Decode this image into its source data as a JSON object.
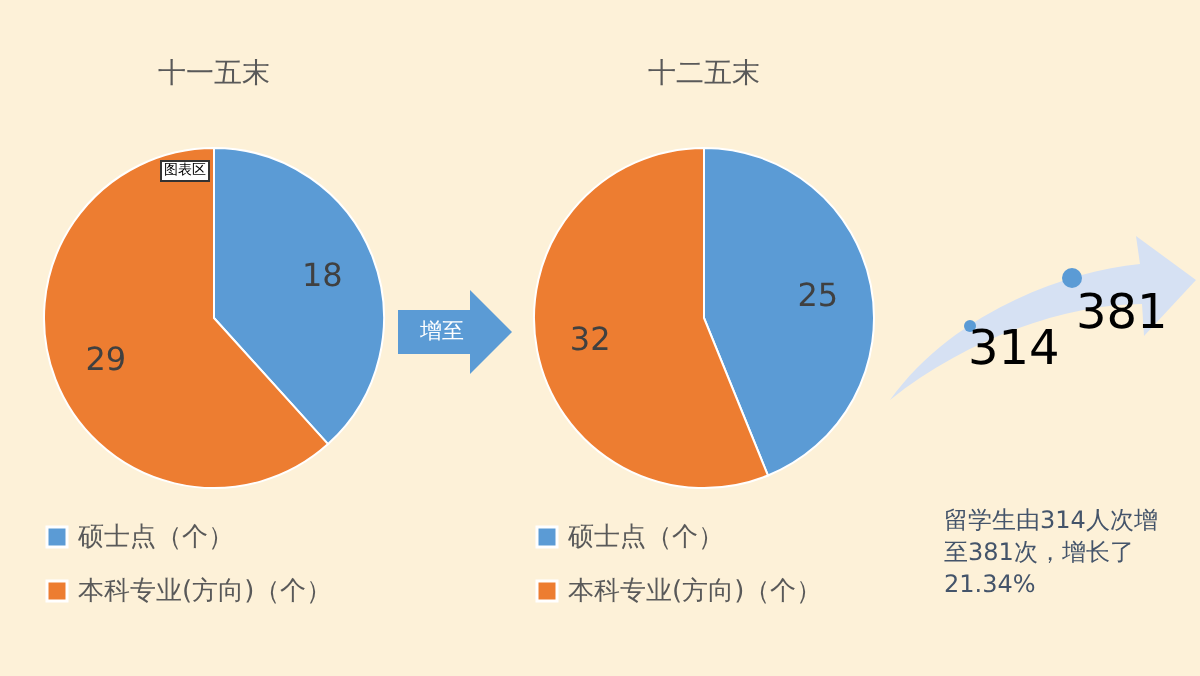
{
  "chart_data": [
    {
      "type": "pie",
      "title": "十一五末",
      "categories": [
        "硕士点（个）",
        "本科专业(方向)（个）"
      ],
      "values": [
        18,
        29
      ],
      "colors": [
        "#5b9bd5",
        "#ed7d31"
      ],
      "data_labels": true,
      "legend": "bottom",
      "annotations": [
        "图表区",
        "增至"
      ]
    },
    {
      "type": "pie",
      "title": "十二五末",
      "categories": [
        "硕士点（个）",
        "本科专业(方向)（个）"
      ],
      "values": [
        25,
        32
      ],
      "colors": [
        "#5b9bd5",
        "#ed7d31"
      ],
      "data_labels": true,
      "legend": "bottom"
    },
    {
      "type": "other",
      "annotations": [
        "314",
        "381",
        "留学生由314人次增至381次，增长了21.34%"
      ]
    }
  ]
}
